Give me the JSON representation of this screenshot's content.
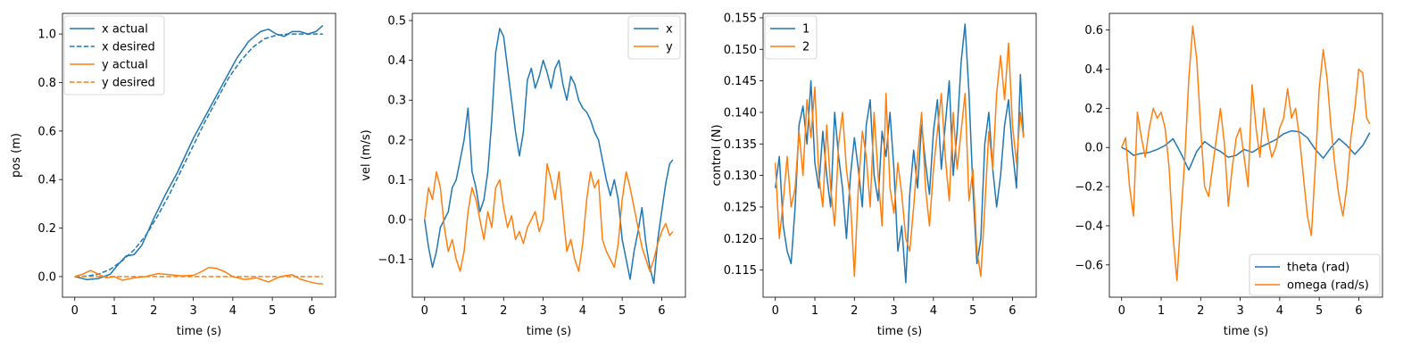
{
  "chart_data": [
    {
      "type": "line",
      "xlabel": "time (s)",
      "ylabel": "pos (m)",
      "xlim": [
        -0.31,
        6.6
      ],
      "ylim": [
        -0.085,
        1.085
      ],
      "xticks": [
        0,
        1,
        2,
        3,
        4,
        5,
        6
      ],
      "yticks": [
        0.0,
        0.2,
        0.4,
        0.6,
        0.8,
        1.0
      ],
      "ytick_labels": [
        "0.0",
        "0.2",
        "0.4",
        "0.6",
        "0.8",
        "1.0"
      ],
      "legend_position": "upper-left",
      "series": [
        {
          "name": "x actual",
          "color": "#1f77b4",
          "dash": "solid",
          "x": [
            0,
            0.3,
            0.6,
            0.9,
            1.1,
            1.3,
            1.5,
            1.7,
            2.0,
            2.3,
            2.6,
            3.0,
            3.4,
            3.8,
            4.1,
            4.4,
            4.7,
            4.9,
            5.1,
            5.3,
            5.5,
            5.7,
            5.9,
            6.1,
            6.28
          ],
          "y": [
            0.0,
            -0.012,
            -0.008,
            0.01,
            0.05,
            0.085,
            0.09,
            0.13,
            0.24,
            0.34,
            0.43,
            0.57,
            0.69,
            0.81,
            0.9,
            0.97,
            1.01,
            1.02,
            1.0,
            0.99,
            1.01,
            1.01,
            1.0,
            1.01,
            1.035
          ]
        },
        {
          "name": "x desired",
          "color": "#1f77b4",
          "dash": "dashed",
          "x": [
            0,
            0.3,
            0.6,
            0.9,
            1.2,
            1.5,
            1.8,
            2.1,
            2.4,
            2.7,
            3.0,
            3.3,
            3.6,
            3.9,
            4.2,
            4.5,
            4.8,
            5.1,
            5.4,
            5.7,
            6.0,
            6.28
          ],
          "y": [
            0.0,
            0.002,
            0.01,
            0.03,
            0.065,
            0.11,
            0.17,
            0.25,
            0.34,
            0.44,
            0.54,
            0.64,
            0.73,
            0.82,
            0.89,
            0.945,
            0.98,
            0.995,
            1.0,
            1.0,
            1.0,
            1.0
          ]
        },
        {
          "name": "y actual",
          "color": "#ff7f0e",
          "dash": "solid",
          "x": [
            0,
            0.2,
            0.4,
            0.6,
            0.8,
            1.0,
            1.2,
            1.5,
            1.8,
            2.1,
            2.4,
            2.7,
            3.0,
            3.2,
            3.4,
            3.6,
            3.8,
            4.0,
            4.3,
            4.6,
            4.9,
            5.2,
            5.5,
            5.7,
            5.9,
            6.1,
            6.28
          ],
          "y": [
            0.0,
            0.01,
            0.025,
            0.01,
            -0.005,
            0.0,
            -0.015,
            -0.005,
            0.0,
            0.012,
            0.008,
            0.003,
            0.005,
            0.02,
            0.038,
            0.033,
            0.02,
            0.0,
            -0.012,
            -0.005,
            -0.022,
            0.0,
            0.008,
            -0.01,
            -0.02,
            -0.028,
            -0.03
          ]
        },
        {
          "name": "y desired",
          "color": "#ff7f0e",
          "dash": "dashed",
          "x": [
            0,
            6.28
          ],
          "y": [
            0.0,
            0.0
          ]
        }
      ]
    },
    {
      "type": "line",
      "xlabel": "time (s)",
      "ylabel": "vel (m/s)",
      "xlim": [
        -0.31,
        6.6
      ],
      "ylim": [
        -0.195,
        0.518
      ],
      "xticks": [
        0,
        1,
        2,
        3,
        4,
        5,
        6
      ],
      "yticks": [
        -0.1,
        0.0,
        0.1,
        0.2,
        0.3,
        0.4,
        0.5
      ],
      "ytick_labels": [
        "−0.1",
        "0.0",
        "0.1",
        "0.2",
        "0.3",
        "0.4",
        "0.5"
      ],
      "legend_position": "upper-right",
      "series": [
        {
          "name": "x",
          "color": "#1f77b4",
          "dash": "solid",
          "x": [
            0,
            0.1,
            0.2,
            0.3,
            0.4,
            0.5,
            0.6,
            0.7,
            0.8,
            0.9,
            1.0,
            1.1,
            1.2,
            1.3,
            1.4,
            1.5,
            1.6,
            1.7,
            1.8,
            1.9,
            2.0,
            2.1,
            2.2,
            2.3,
            2.4,
            2.5,
            2.6,
            2.7,
            2.8,
            2.9,
            3.0,
            3.1,
            3.2,
            3.3,
            3.4,
            3.5,
            3.6,
            3.7,
            3.8,
            3.9,
            4.0,
            4.1,
            4.2,
            4.3,
            4.4,
            4.5,
            4.6,
            4.7,
            4.8,
            4.9,
            5.0,
            5.1,
            5.2,
            5.3,
            5.4,
            5.5,
            5.6,
            5.7,
            5.8,
            5.9,
            6.0,
            6.1,
            6.2,
            6.28
          ],
          "y": [
            0.0,
            -0.07,
            -0.12,
            -0.08,
            -0.02,
            0.0,
            0.02,
            0.08,
            0.1,
            0.15,
            0.2,
            0.28,
            0.12,
            0.08,
            0.02,
            0.05,
            0.12,
            0.25,
            0.42,
            0.48,
            0.46,
            0.38,
            0.3,
            0.22,
            0.16,
            0.22,
            0.35,
            0.38,
            0.33,
            0.36,
            0.4,
            0.37,
            0.33,
            0.38,
            0.4,
            0.34,
            0.3,
            0.36,
            0.34,
            0.3,
            0.28,
            0.27,
            0.25,
            0.22,
            0.2,
            0.15,
            0.1,
            0.06,
            0.1,
            0.05,
            -0.05,
            -0.1,
            -0.15,
            -0.08,
            -0.03,
            0.03,
            -0.06,
            -0.12,
            -0.16,
            -0.05,
            0.02,
            0.09,
            0.14,
            0.15
          ]
        },
        {
          "name": "y",
          "color": "#ff7f0e",
          "dash": "solid",
          "x": [
            0,
            0.1,
            0.2,
            0.3,
            0.4,
            0.5,
            0.6,
            0.7,
            0.8,
            0.9,
            1.0,
            1.1,
            1.2,
            1.3,
            1.4,
            1.5,
            1.6,
            1.7,
            1.8,
            1.9,
            2.0,
            2.1,
            2.2,
            2.3,
            2.4,
            2.5,
            2.6,
            2.7,
            2.8,
            2.9,
            3.0,
            3.1,
            3.2,
            3.3,
            3.4,
            3.5,
            3.6,
            3.7,
            3.8,
            3.9,
            4.0,
            4.1,
            4.2,
            4.3,
            4.4,
            4.5,
            4.6,
            4.7,
            4.8,
            4.9,
            5.0,
            5.1,
            5.2,
            5.3,
            5.4,
            5.5,
            5.6,
            5.7,
            5.8,
            5.9,
            6.0,
            6.1,
            6.2,
            6.28
          ],
          "y": [
            0.0,
            0.08,
            0.05,
            0.12,
            0.08,
            -0.02,
            -0.08,
            -0.05,
            -0.1,
            -0.13,
            -0.08,
            0.02,
            0.08,
            0.05,
            0.0,
            -0.05,
            0.02,
            -0.02,
            0.08,
            0.1,
            0.03,
            -0.02,
            0.01,
            -0.05,
            -0.03,
            -0.06,
            -0.02,
            0.0,
            0.02,
            -0.03,
            0.0,
            0.14,
            0.1,
            0.05,
            0.12,
            0.02,
            -0.08,
            -0.05,
            -0.1,
            -0.13,
            -0.06,
            0.05,
            0.12,
            0.08,
            0.1,
            -0.05,
            -0.08,
            -0.1,
            -0.12,
            -0.06,
            0.05,
            0.12,
            0.08,
            0.03,
            -0.02,
            -0.07,
            -0.1,
            -0.13,
            -0.1,
            -0.06,
            -0.03,
            -0.01,
            -0.04,
            -0.03
          ]
        }
      ]
    },
    {
      "type": "line",
      "xlabel": "time (s)",
      "ylabel": "control (N)",
      "xlim": [
        -0.31,
        6.6
      ],
      "ylim": [
        0.1107,
        0.1557
      ],
      "xticks": [
        0,
        1,
        2,
        3,
        4,
        5,
        6
      ],
      "yticks": [
        0.115,
        0.12,
        0.125,
        0.13,
        0.135,
        0.14,
        0.145,
        0.15,
        0.155
      ],
      "ytick_labels": [
        "0.115",
        "0.120",
        "0.125",
        "0.130",
        "0.135",
        "0.140",
        "0.145",
        "0.150",
        "0.155"
      ],
      "legend_position": "upper-left",
      "series": [
        {
          "name": "1",
          "color": "#1f77b4",
          "dash": "solid",
          "x": [
            0,
            0.1,
            0.2,
            0.3,
            0.4,
            0.5,
            0.6,
            0.7,
            0.8,
            0.9,
            1.0,
            1.1,
            1.2,
            1.3,
            1.4,
            1.5,
            1.6,
            1.7,
            1.8,
            1.9,
            2.0,
            2.1,
            2.2,
            2.3,
            2.4,
            2.5,
            2.6,
            2.7,
            2.8,
            2.9,
            3.0,
            3.1,
            3.2,
            3.3,
            3.4,
            3.5,
            3.6,
            3.7,
            3.8,
            3.9,
            4.0,
            4.1,
            4.2,
            4.3,
            4.4,
            4.5,
            4.6,
            4.7,
            4.8,
            4.9,
            5.0,
            5.1,
            5.2,
            5.3,
            5.4,
            5.5,
            5.6,
            5.7,
            5.8,
            5.9,
            6.0,
            6.1,
            6.2,
            6.28
          ],
          "y": [
            0.128,
            0.133,
            0.122,
            0.118,
            0.116,
            0.125,
            0.138,
            0.141,
            0.135,
            0.145,
            0.132,
            0.128,
            0.137,
            0.13,
            0.125,
            0.14,
            0.133,
            0.128,
            0.12,
            0.13,
            0.136,
            0.131,
            0.125,
            0.138,
            0.142,
            0.13,
            0.126,
            0.137,
            0.133,
            0.14,
            0.131,
            0.118,
            0.122,
            0.113,
            0.127,
            0.134,
            0.128,
            0.138,
            0.132,
            0.127,
            0.137,
            0.142,
            0.131,
            0.138,
            0.145,
            0.13,
            0.137,
            0.148,
            0.154,
            0.143,
            0.128,
            0.116,
            0.12,
            0.135,
            0.14,
            0.131,
            0.125,
            0.13,
            0.138,
            0.142,
            0.134,
            0.128,
            0.146,
            0.136
          ]
        },
        {
          "name": "2",
          "color": "#ff7f0e",
          "dash": "solid",
          "x": [
            0,
            0.1,
            0.2,
            0.3,
            0.4,
            0.5,
            0.6,
            0.7,
            0.8,
            0.9,
            1.0,
            1.1,
            1.2,
            1.3,
            1.4,
            1.5,
            1.6,
            1.7,
            1.8,
            1.9,
            2.0,
            2.1,
            2.2,
            2.3,
            2.4,
            2.5,
            2.6,
            2.7,
            2.8,
            2.9,
            3.0,
            3.1,
            3.2,
            3.3,
            3.4,
            3.5,
            3.6,
            3.7,
            3.8,
            3.9,
            4.0,
            4.1,
            4.2,
            4.3,
            4.4,
            4.5,
            4.6,
            4.7,
            4.8,
            4.9,
            5.0,
            5.1,
            5.2,
            5.3,
            5.4,
            5.5,
            5.6,
            5.7,
            5.8,
            5.9,
            6.0,
            6.1,
            6.2,
            6.28
          ],
          "y": [
            0.132,
            0.12,
            0.126,
            0.133,
            0.125,
            0.128,
            0.137,
            0.13,
            0.142,
            0.136,
            0.144,
            0.13,
            0.125,
            0.138,
            0.128,
            0.122,
            0.135,
            0.14,
            0.131,
            0.126,
            0.114,
            0.128,
            0.137,
            0.133,
            0.125,
            0.14,
            0.13,
            0.122,
            0.143,
            0.128,
            0.124,
            0.132,
            0.127,
            0.12,
            0.118,
            0.125,
            0.133,
            0.14,
            0.128,
            0.122,
            0.131,
            0.137,
            0.143,
            0.133,
            0.126,
            0.14,
            0.131,
            0.137,
            0.143,
            0.126,
            0.131,
            0.118,
            0.114,
            0.125,
            0.137,
            0.131,
            0.143,
            0.149,
            0.142,
            0.151,
            0.138,
            0.132,
            0.14,
            0.136
          ]
        }
      ]
    },
    {
      "type": "line",
      "xlabel": "time (s)",
      "ylabel": "",
      "xlim": [
        -0.31,
        6.6
      ],
      "ylim": [
        -0.765,
        0.685
      ],
      "xticks": [
        0,
        1,
        2,
        3,
        4,
        5,
        6
      ],
      "yticks": [
        -0.6,
        -0.4,
        -0.2,
        0.0,
        0.2,
        0.4,
        0.6
      ],
      "ytick_labels": [
        "−0.6",
        "−0.4",
        "−0.2",
        "0.0",
        "0.2",
        "0.4",
        "0.6"
      ],
      "legend_position": "lower-right",
      "series": [
        {
          "name": "theta (rad)",
          "color": "#1f77b4",
          "dash": "solid",
          "x": [
            0,
            0.15,
            0.3,
            0.5,
            0.7,
            0.9,
            1.1,
            1.3,
            1.5,
            1.7,
            1.9,
            2.1,
            2.3,
            2.5,
            2.7,
            2.9,
            3.1,
            3.3,
            3.5,
            3.7,
            3.9,
            4.1,
            4.3,
            4.5,
            4.7,
            4.9,
            5.1,
            5.3,
            5.5,
            5.7,
            5.9,
            6.1,
            6.28
          ],
          "y": [
            0.0,
            -0.015,
            -0.04,
            -0.03,
            -0.025,
            -0.01,
            0.01,
            0.045,
            -0.03,
            -0.115,
            -0.02,
            0.03,
            0.0,
            -0.02,
            -0.05,
            -0.04,
            -0.01,
            -0.025,
            0.0,
            0.02,
            0.04,
            0.07,
            0.085,
            0.08,
            0.05,
            -0.01,
            -0.055,
            0.0,
            0.045,
            0.01,
            -0.035,
            0.01,
            0.075
          ]
        },
        {
          "name": "omega (rad/s)",
          "color": "#ff7f0e",
          "dash": "solid",
          "x": [
            0,
            0.1,
            0.2,
            0.3,
            0.4,
            0.5,
            0.6,
            0.7,
            0.8,
            0.9,
            1.0,
            1.1,
            1.2,
            1.3,
            1.4,
            1.5,
            1.6,
            1.7,
            1.8,
            1.9,
            2.0,
            2.1,
            2.2,
            2.3,
            2.4,
            2.5,
            2.6,
            2.7,
            2.8,
            2.9,
            3.0,
            3.1,
            3.2,
            3.3,
            3.4,
            3.5,
            3.6,
            3.7,
            3.8,
            3.9,
            4.0,
            4.1,
            4.2,
            4.3,
            4.4,
            4.5,
            4.6,
            4.7,
            4.8,
            4.9,
            5.0,
            5.1,
            5.2,
            5.3,
            5.4,
            5.5,
            5.6,
            5.7,
            5.8,
            5.9,
            6.0,
            6.1,
            6.2,
            6.28
          ],
          "y": [
            0.0,
            0.05,
            -0.2,
            -0.35,
            0.18,
            0.05,
            -0.05,
            0.1,
            0.2,
            0.15,
            0.18,
            0.1,
            -0.1,
            -0.45,
            -0.68,
            -0.35,
            -0.05,
            0.35,
            0.62,
            0.45,
            0.1,
            -0.2,
            -0.25,
            -0.1,
            0.05,
            0.2,
            0.02,
            -0.3,
            -0.1,
            0.05,
            0.1,
            -0.05,
            -0.2,
            0.32,
            0.1,
            -0.05,
            0.2,
            0.05,
            -0.05,
            0.0,
            0.1,
            0.15,
            0.3,
            0.15,
            0.2,
            0.05,
            -0.15,
            -0.35,
            -0.45,
            -0.1,
            0.3,
            0.5,
            0.35,
            0.1,
            -0.1,
            -0.25,
            -0.35,
            -0.2,
            0.05,
            0.2,
            0.4,
            0.38,
            0.15,
            0.12
          ]
        }
      ]
    }
  ]
}
